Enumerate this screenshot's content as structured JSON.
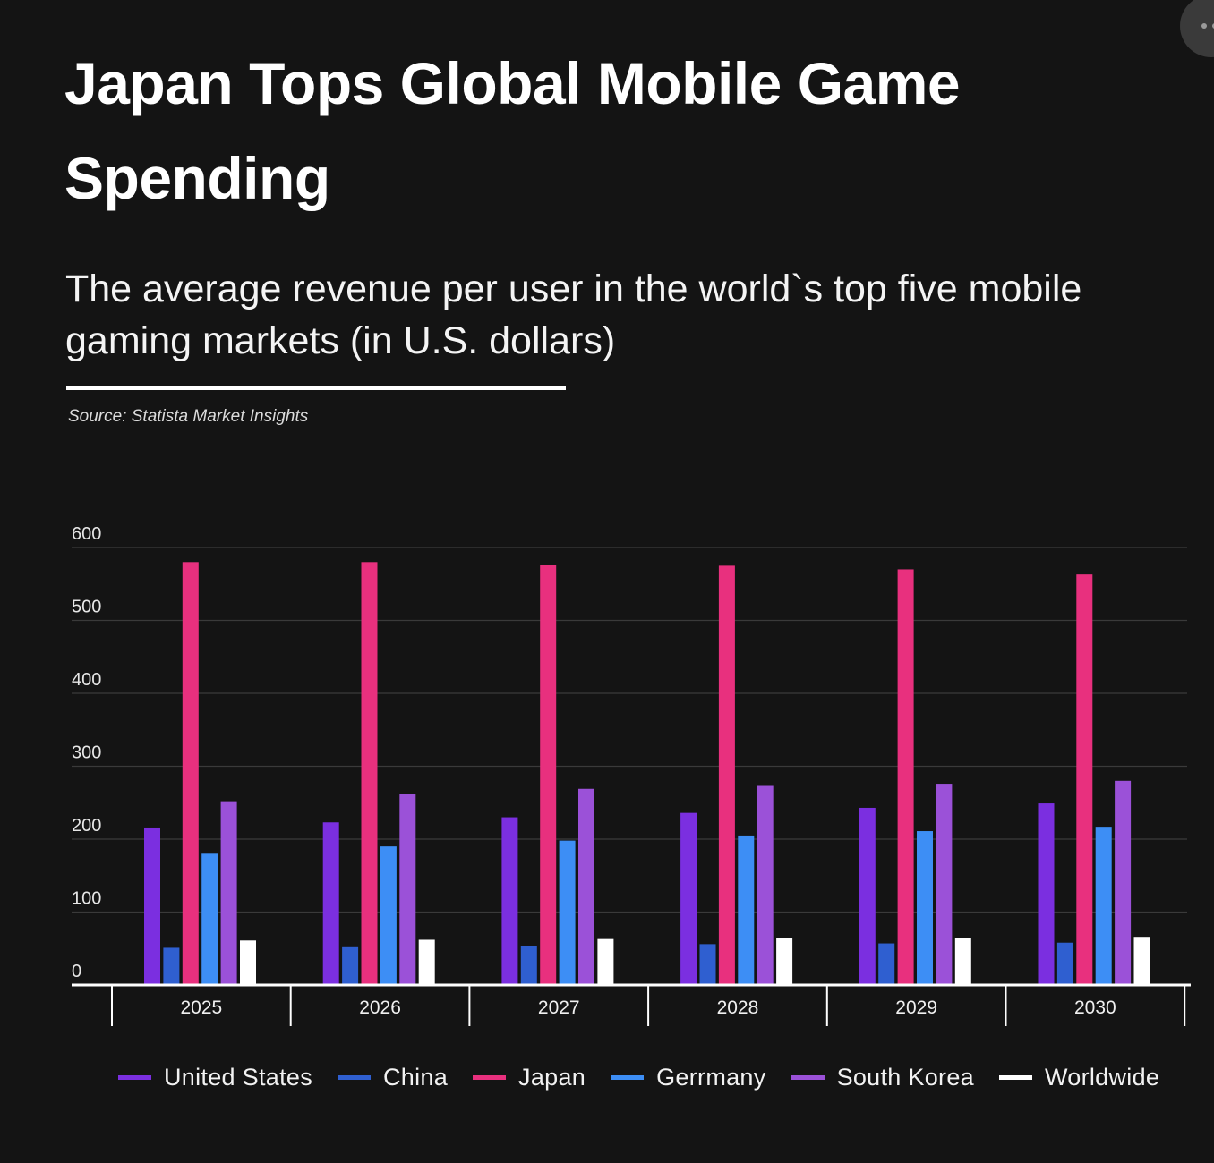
{
  "header": {
    "title": "Japan Tops Global Mobile Game Spending",
    "subtitle": "The average revenue per user in the world`s top five mobile gaming markets (in U.S. dollars)",
    "source": "Source: Statista Market Insights"
  },
  "colors": {
    "background": "#141414",
    "grid": "#3a3a3a",
    "text": "#ffffff"
  },
  "chart_data": {
    "type": "bar",
    "title": "Japan Tops Global Mobile Game Spending",
    "subtitle": "The average revenue per user in the world`s top five mobile gaming markets (in U.S. dollars)",
    "xlabel": "",
    "ylabel": "",
    "ylim": [
      0,
      600
    ],
    "yticks": [
      0,
      100,
      200,
      300,
      400,
      500,
      600
    ],
    "categories": [
      "2025",
      "2026",
      "2027",
      "2028",
      "2029",
      "2030"
    ],
    "grid": true,
    "legend_position": "bottom",
    "series": [
      {
        "name": "United States",
        "color": "#7b2fe0",
        "values": [
          216,
          223,
          230,
          236,
          243,
          249
        ]
      },
      {
        "name": "China",
        "color": "#2f5fd0",
        "values": [
          51,
          53,
          54,
          56,
          57,
          58
        ]
      },
      {
        "name": "Japan",
        "color": "#e8307e",
        "values": [
          580,
          580,
          576,
          575,
          570,
          563
        ]
      },
      {
        "name": "Gerrmany",
        "color": "#3d8ef5",
        "values": [
          180,
          190,
          198,
          205,
          211,
          217
        ]
      },
      {
        "name": "South Korea",
        "color": "#9b51d8",
        "values": [
          252,
          262,
          269,
          273,
          276,
          280
        ]
      },
      {
        "name": "Worldwide",
        "color": "#ffffff",
        "values": [
          61,
          62,
          63,
          64,
          65,
          66
        ]
      }
    ]
  }
}
